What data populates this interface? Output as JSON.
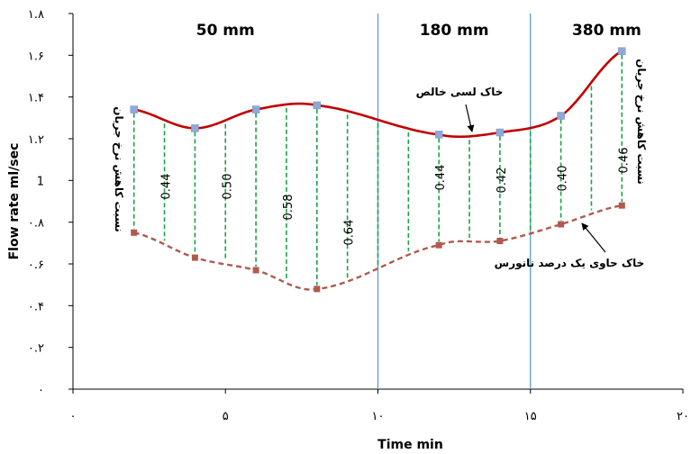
{
  "chart_data": {
    "type": "line",
    "xlabel": "Time   min",
    "ylabel": "Flow rate  ml/sec",
    "xlim": [
      0,
      20
    ],
    "ylim": [
      0,
      1.8
    ],
    "x_ticks": [
      0,
      5,
      10,
      15,
      20
    ],
    "x_tick_labels": [
      "۰",
      "۵",
      "۱۰",
      "۱۵",
      "۲۰"
    ],
    "y_ticks": [
      0,
      0.2,
      0.4,
      0.6,
      0.8,
      1.0,
      1.2,
      1.4,
      1.6,
      1.8
    ],
    "y_tick_labels": [
      "۰",
      "۰.۲",
      "۰.۴",
      "۰.۶",
      "۰.۸",
      "1",
      "۱.۲",
      "۱.۴",
      "۱.۶",
      "۱.۸"
    ],
    "grid": false,
    "series": [
      {
        "name": "خاک لسی خالص",
        "style": "solid",
        "line_color": "#c00000",
        "marker_color": "#8fa8d8",
        "x": [
          2,
          4,
          6,
          8,
          12,
          14,
          16,
          18
        ],
        "y": [
          1.34,
          1.25,
          1.34,
          1.36,
          1.22,
          1.23,
          1.31,
          1.62
        ]
      },
      {
        "name": "خاک حاوی یک درصد نانورس",
        "style": "dashed",
        "line_color": "#b05a4e",
        "marker_color": "#b05a4e",
        "x": [
          2,
          4,
          6,
          8,
          12,
          14,
          16,
          18
        ],
        "y": [
          0.75,
          0.63,
          0.57,
          0.48,
          0.69,
          0.71,
          0.79,
          0.88
        ]
      }
    ],
    "regions": [
      {
        "label": "50 mm",
        "x_start": 0,
        "x_end": 10
      },
      {
        "label": "180 mm",
        "x_start": 10,
        "x_end": 15
      },
      {
        "label": "380 mm",
        "x_start": 15,
        "x_end": 20
      }
    ],
    "region_dividers_x": [
      10,
      15
    ],
    "reduction_ratios": [
      {
        "value": "0.44",
        "x": 3
      },
      {
        "value": "0.50",
        "x": 5
      },
      {
        "value": "0.58",
        "x": 7
      },
      {
        "value": "0.64",
        "x": 9
      },
      {
        "value": "0.44",
        "x": 12
      },
      {
        "value": "0.42",
        "x": 14
      },
      {
        "value": "0.40",
        "x": 16
      },
      {
        "value": "0.46",
        "x": 18
      }
    ],
    "connector_x": [
      2,
      3,
      4,
      5,
      6,
      7,
      8,
      9,
      10,
      11,
      12,
      13,
      14,
      15,
      16,
      17,
      18
    ],
    "side_label": "نسبت کاهش نرخ جریان",
    "colors": {
      "connector": "#1aa34a",
      "divider": "#5b9bd5",
      "axis": "#000000"
    }
  }
}
